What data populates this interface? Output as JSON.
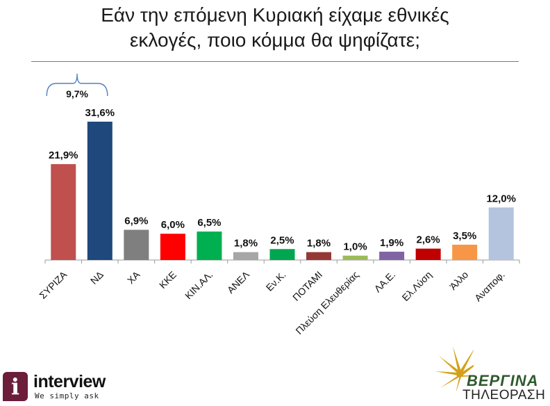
{
  "title_line1": "Εάν την επόμενη Κυριακή είχαμε εθνικές",
  "title_line2": "εκλογές, ποιο κόμμα θα ψηφίζατε;",
  "chart_data": {
    "type": "bar",
    "categories": [
      "ΣΥΡΙΖΑ",
      "ΝΔ",
      "ΧΑ",
      "ΚΚΕ",
      "ΚΙΝ.ΑΛ.",
      "ΑΝΕΛ",
      "Εν.Κ.",
      "ΠΟΤΑΜΙ",
      "Πλεύση Ελευθερίας",
      "ΛΑ.Ε.",
      "Ελ.Λύση",
      "Άλλο",
      "Αναποφ."
    ],
    "values": [
      21.9,
      31.6,
      6.9,
      6.0,
      6.5,
      1.8,
      2.5,
      1.8,
      1.0,
      1.9,
      2.6,
      3.5,
      12.0
    ],
    "value_labels": [
      "21,9%",
      "31,6%",
      "6,9%",
      "6,0%",
      "6,5%",
      "1,8%",
      "2,5%",
      "1,8%",
      "1,0%",
      "1,9%",
      "2,6%",
      "3,5%",
      "12,0%"
    ],
    "colors": [
      "#c0504d",
      "#1f497d",
      "#7f7f7f",
      "#ff0000",
      "#00b050",
      "#a6a6a6",
      "#00a650",
      "#953735",
      "#9bbb59",
      "#8064a2",
      "#c00000",
      "#f79646",
      "#b4c3de"
    ],
    "ylim": [
      0,
      35
    ],
    "grid": false,
    "legend": "none",
    "annotation": {
      "text": "9,7%",
      "from_category": "ΣΥΡΙΖΑ",
      "to_category": "ΝΔ"
    }
  },
  "logos": {
    "interview_initial": "i",
    "interview_name": "interview",
    "interview_tagline": "We simply ask",
    "vergina_name": "ΒΕΡΓΙΝΑ",
    "vergina_sub": "ΤΗΛΕΟΡΑΣΗ"
  }
}
